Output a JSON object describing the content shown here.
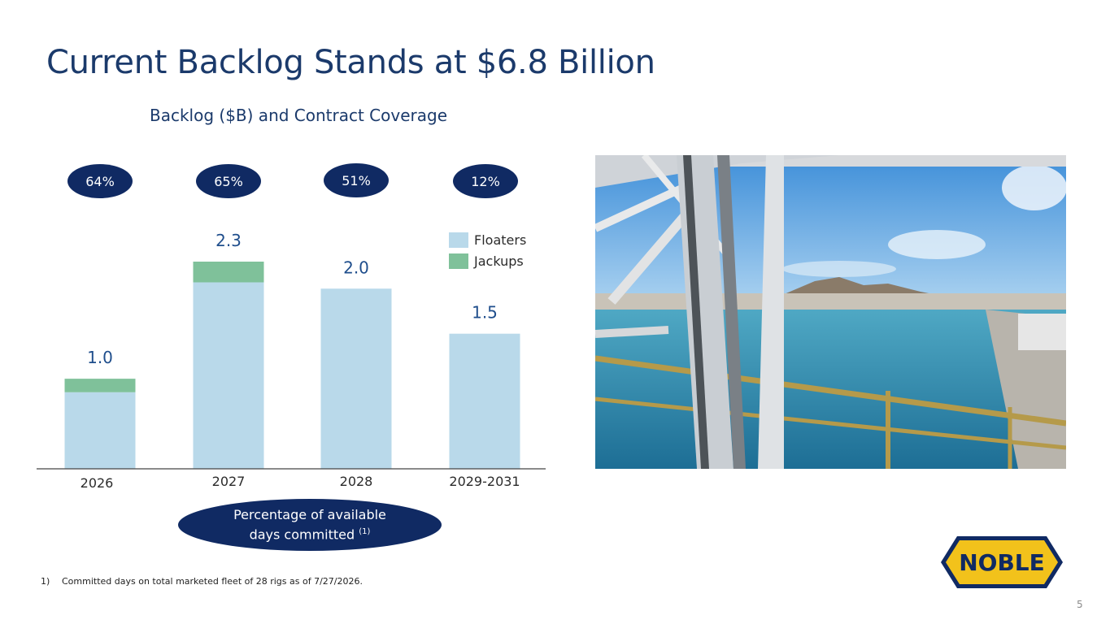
{
  "title": "Current Backlog Stands at $6.8 Billion",
  "subtitle": "Backlog ($B) and Contract Coverage",
  "coverage": [
    {
      "year": "2026",
      "pct": "64%"
    },
    {
      "year": "2027",
      "pct": "65%"
    },
    {
      "year": "2028",
      "pct": "51%"
    },
    {
      "year": "2029-2031",
      "pct": "12%"
    }
  ],
  "legend": {
    "floaters": "Floaters",
    "jackups": "Jackups"
  },
  "colors": {
    "floaters": "#b9d9ea",
    "jackups": "#7fc19a",
    "navy": "#102a63",
    "title": "#1b3a6b",
    "label": "#1f4e8c"
  },
  "callout": {
    "line1": "Percentage of available",
    "line2": "days committed",
    "note": "(1)"
  },
  "footnote": {
    "number": "1)",
    "text": "Committed days on total marketed fleet of 28 rigs as of 7/27/2026."
  },
  "logo_text": "NOBLE",
  "page_number": "5",
  "chart_data": {
    "type": "bar",
    "stacked": true,
    "categories": [
      "2026",
      "2027",
      "2028",
      "2029-2031"
    ],
    "series": [
      {
        "name": "Floaters",
        "values": [
          0.85,
          2.07,
          2.0,
          1.5
        ]
      },
      {
        "name": "Jackups",
        "values": [
          0.15,
          0.23,
          0.0,
          0.0
        ]
      }
    ],
    "totals": [
      "1.0",
      "2.3",
      "2.0",
      "1.5"
    ],
    "ylim": [
      0,
      2.3
    ]
  }
}
